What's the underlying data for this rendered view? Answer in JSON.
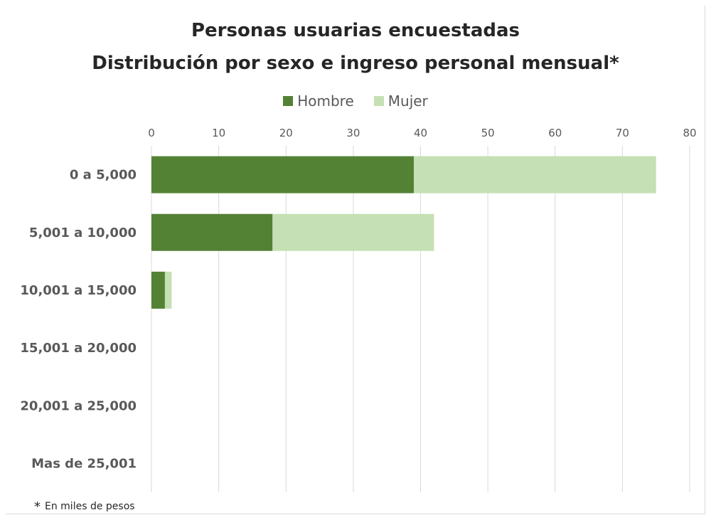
{
  "chart_data": {
    "type": "bar",
    "orientation": "horizontal",
    "stacked": true,
    "title": "Personas usuarias encuestadas",
    "subtitle": "Distribución por sexo e ingreso personal mensual*",
    "categories": [
      "0 a 5,000",
      "5,001 a 10,000",
      "10,001 a 15,000",
      "15,001 a 20,000",
      "20,001 a 25,000",
      "Mas de 25,001"
    ],
    "series": [
      {
        "name": "Hombre",
        "color": "#548235",
        "values": [
          39,
          18,
          2,
          0,
          0,
          0
        ]
      },
      {
        "name": "Mujer",
        "color": "#c5e0b4",
        "values": [
          36,
          24,
          1,
          0,
          0,
          0
        ]
      }
    ],
    "xlim": [
      0,
      80
    ],
    "xticks": [
      "0",
      "10",
      "20",
      "30",
      "40",
      "50",
      "60",
      "70",
      "80"
    ],
    "xaxis_position": "top",
    "grid": true,
    "legend": "top-center",
    "footnote_marker": "*",
    "footnote": "En miles de pesos"
  }
}
